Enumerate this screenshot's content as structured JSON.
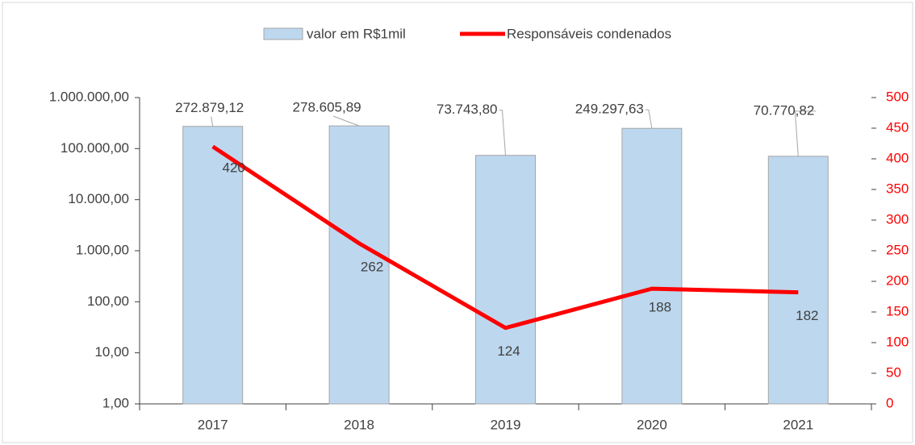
{
  "chart_data": {
    "type": "bar_line",
    "categories": [
      "2017",
      "2018",
      "2019",
      "2020",
      "2021"
    ],
    "series": [
      {
        "name": "valor em R$1mil",
        "type": "bar",
        "color": "#bdd7ee",
        "values": [
          272879.12,
          278605.89,
          73743.8,
          249297.63,
          70770.82
        ],
        "value_labels": [
          "272.879,12",
          "278.605,89",
          "73.743,80",
          "249.297,63",
          "70.770,82"
        ]
      },
      {
        "name": "Responsáveis condenados",
        "type": "line",
        "axis": "y2",
        "color": "#ff0000",
        "values": [
          420,
          262,
          124,
          188,
          182
        ]
      }
    ],
    "ylim": [
      1,
      1000000
    ],
    "ylog": true,
    "yticks": [
      {
        "value": 1,
        "label": "1,00"
      },
      {
        "value": 10,
        "label": "10,00"
      },
      {
        "value": 100,
        "label": "100,00"
      },
      {
        "value": 1000,
        "label": "1.000,00"
      },
      {
        "value": 10000,
        "label": "10.000,00"
      },
      {
        "value": 100000,
        "label": "100.000,00"
      },
      {
        "value": 1000000,
        "label": "1.000.000,00"
      }
    ],
    "y2lim": [
      0,
      500
    ],
    "y2ticks": [
      0,
      50,
      100,
      150,
      200,
      250,
      300,
      350,
      400,
      450,
      500
    ],
    "y2color": "#ff0000",
    "legend": "top"
  }
}
